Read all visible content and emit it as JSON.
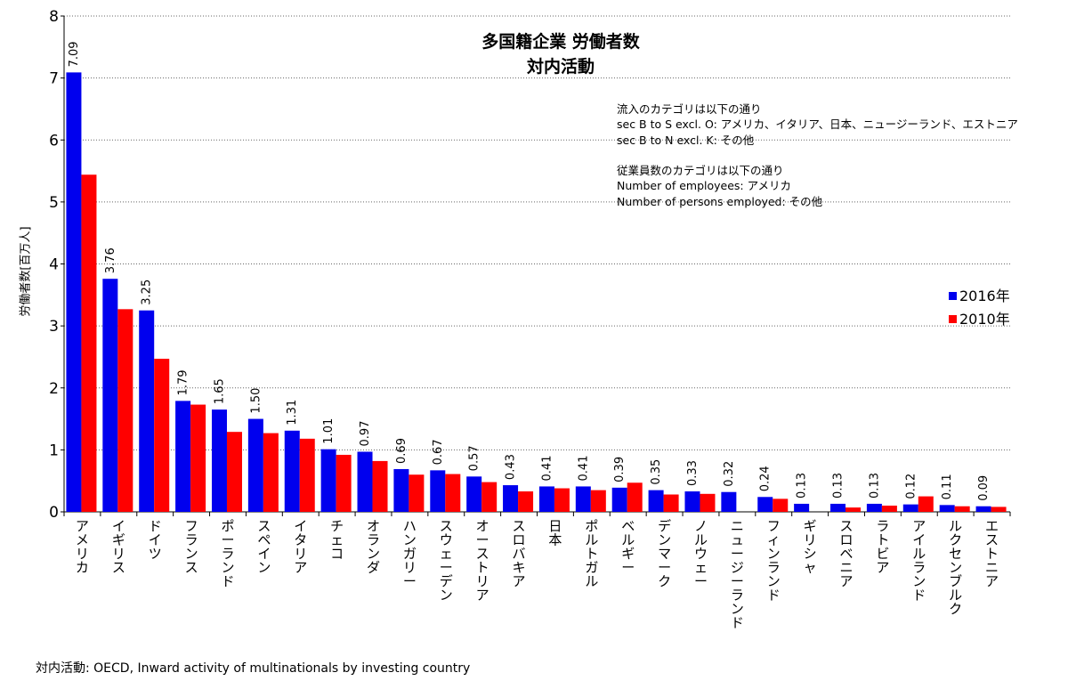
{
  "chart_data": {
    "type": "bar",
    "title": "多国籍企業 労働者数",
    "subtitle": "対内活動",
    "ylabel": "労働者数[百万人]",
    "ylim": [
      0,
      8
    ],
    "yticks": [
      0,
      1,
      2,
      3,
      4,
      5,
      6,
      7,
      8
    ],
    "grid": true,
    "legend_position": "right",
    "categories": [
      "アメリカ",
      "イギリス",
      "ドイツ",
      "フランス",
      "ポーランド",
      "スペイン",
      "イタリア",
      "チェコ",
      "オランダ",
      "ハンガリー",
      "スウェーデン",
      "オーストリア",
      "スロバキア",
      "日本",
      "ポルトガル",
      "ベルギー",
      "デンマーク",
      "ノルウェー",
      "ニュージーランド",
      "フィンランド",
      "ギリシャ",
      "スロベニア",
      "ラトビア",
      "アイルランド",
      "ルクセンブルク",
      "エストニア"
    ],
    "series": [
      {
        "name": "2016年",
        "color": "#0000ee",
        "values": [
          7.09,
          3.76,
          3.25,
          1.79,
          1.65,
          1.5,
          1.31,
          1.01,
          0.97,
          0.69,
          0.67,
          0.57,
          0.43,
          0.41,
          0.41,
          0.39,
          0.35,
          0.33,
          0.32,
          0.24,
          0.13,
          0.13,
          0.13,
          0.12,
          0.11,
          0.09
        ],
        "labels": [
          "7.09",
          "3.76",
          "3.25",
          "1.79",
          "1.65",
          "1.50",
          "1.31",
          "1.01",
          "0.97",
          "0.69",
          "0.67",
          "0.57",
          "0.43",
          "0.41",
          "0.41",
          "0.39",
          "0.35",
          "0.33",
          "0.32",
          "0.24",
          "0.13",
          "0.13",
          "0.13",
          "0.12",
          "0.11",
          "0.09"
        ]
      },
      {
        "name": "2010年",
        "color": "#ff0000",
        "values": [
          5.44,
          3.27,
          2.47,
          1.73,
          1.29,
          1.27,
          1.18,
          0.92,
          0.82,
          0.6,
          0.61,
          0.48,
          0.33,
          0.38,
          0.35,
          0.47,
          0.28,
          0.29,
          null,
          0.21,
          null,
          0.07,
          0.1,
          0.25,
          0.09,
          0.08
        ]
      }
    ],
    "annotations": {
      "note1": [
        "流入のカテゴリは以下の通り",
        "sec B to S excl. O: アメリカ、イタリア、日本、ニュージーランド、エストニア",
        "sec B to N excl. K: その他"
      ],
      "note2": [
        "従業員数のカテゴリは以下の通り",
        "Number of employees: アメリカ",
        "Number of persons employed: その他"
      ],
      "source": "対内活動: OECD, Inward activity of multinationals by investing country"
    }
  }
}
